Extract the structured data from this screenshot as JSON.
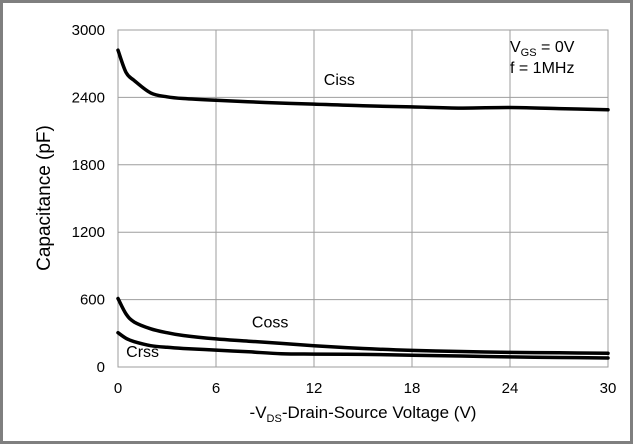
{
  "chart_data": {
    "type": "line",
    "title": "",
    "xlabel": "-V_DS-Drain-Source Voltage (V)",
    "xlabel_parts": {
      "prefix": "-V",
      "sub": "DS",
      "rest": "-Drain-Source Voltage (V)"
    },
    "ylabel": "Capacitance (pF)",
    "xlim": [
      0,
      30
    ],
    "ylim": [
      0,
      3000
    ],
    "xticks": [
      0,
      6,
      12,
      18,
      24,
      30
    ],
    "yticks": [
      0,
      600,
      1200,
      1800,
      2400,
      3000
    ],
    "grid": true,
    "conditions": {
      "line1": {
        "prefix": "V",
        "sub": "GS",
        "rest": " = 0V"
      },
      "line2": "f = 1MHz"
    },
    "series": [
      {
        "name": "Ciss",
        "x": [
          0,
          0.5,
          1,
          2,
          3,
          4,
          6,
          9,
          12,
          15,
          18,
          21,
          24,
          27,
          30
        ],
        "y": [
          2820,
          2620,
          2550,
          2440,
          2405,
          2390,
          2375,
          2355,
          2340,
          2325,
          2315,
          2305,
          2310,
          2300,
          2290
        ]
      },
      {
        "name": "Coss",
        "x": [
          0,
          0.5,
          1,
          2,
          3,
          4,
          6,
          8,
          10,
          12,
          15,
          18,
          21,
          24,
          27,
          30
        ],
        "y": [
          610,
          470,
          400,
          340,
          305,
          280,
          250,
          230,
          210,
          190,
          165,
          148,
          138,
          130,
          126,
          122
        ]
      },
      {
        "name": "Crss",
        "x": [
          0,
          0.5,
          1,
          2,
          3,
          4,
          6,
          8,
          10,
          12,
          15,
          18,
          21,
          24,
          27,
          30
        ],
        "y": [
          305,
          255,
          225,
          190,
          175,
          165,
          150,
          135,
          118,
          115,
          112,
          105,
          98,
          90,
          85,
          80
        ]
      }
    ],
    "series_labels": [
      {
        "name": "Ciss",
        "x": 12.6,
        "y": 2510
      },
      {
        "name": "Coss",
        "x": 8.2,
        "y": 350
      },
      {
        "name": "Crss",
        "x": 0.5,
        "y": 90
      }
    ]
  }
}
